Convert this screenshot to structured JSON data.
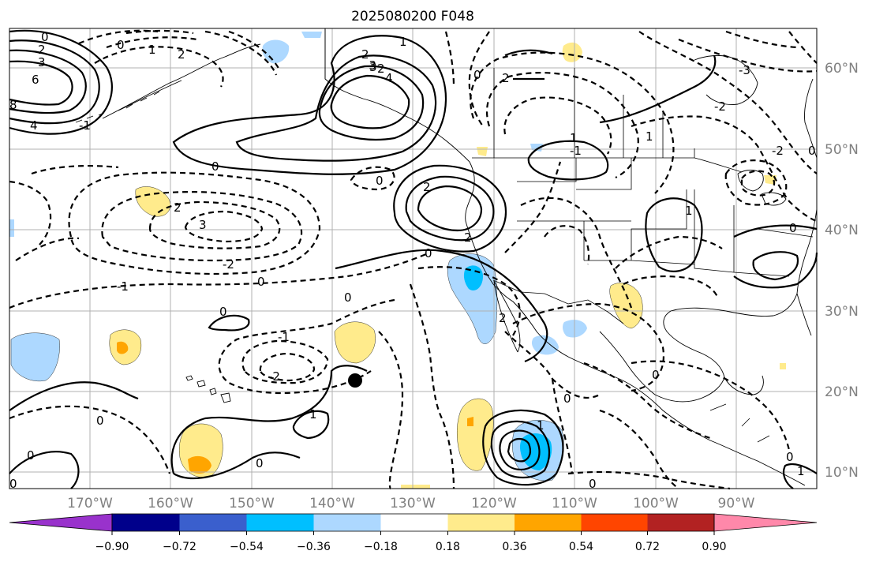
{
  "title": "2025080200 F048",
  "lat_labels": [
    "60°N",
    "50°N",
    "40°N",
    "30°N",
    "20°N",
    "10°N"
  ],
  "lon_labels": [
    "170°W",
    "160°W",
    "150°W",
    "140°W",
    "130°W",
    "120°W",
    "110°W",
    "100°W",
    "90°W"
  ],
  "colorbar": {
    "tick_labels": [
      "−0.90",
      "−0.72",
      "−0.54",
      "−0.36",
      "−0.18",
      "0.18",
      "0.36",
      "0.54",
      "0.72",
      "0.90"
    ],
    "colors": [
      "#9932cc",
      "#00008b",
      "#3a5fcd",
      "#00bfff",
      "#add8ff",
      "#ffffff",
      "#ffeb8c",
      "#ffa500",
      "#ff4500",
      "#b22222",
      "#ff88aa"
    ]
  },
  "contour_labels": [
    {
      "text": "0"
    },
    {
      "text": "2"
    },
    {
      "text": "3"
    },
    {
      "text": "6"
    },
    {
      "text": "8"
    },
    {
      "text": "4"
    },
    {
      "text": "0"
    },
    {
      "text": "1"
    },
    {
      "text": "2"
    },
    {
      "text": "-1"
    },
    {
      "text": "2"
    },
    {
      "text": "-3"
    },
    {
      "text": "1"
    },
    {
      "text": "2"
    },
    {
      "text": "3"
    },
    {
      "text": "4"
    },
    {
      "text": "0"
    },
    {
      "text": "2"
    },
    {
      "text": "0"
    },
    {
      "text": "-1"
    },
    {
      "text": "1"
    },
    {
      "text": "-3"
    },
    {
      "text": "-2"
    },
    {
      "text": "-2"
    },
    {
      "text": "0"
    },
    {
      "text": "0"
    },
    {
      "text": "2"
    },
    {
      "text": "2"
    },
    {
      "text": "2"
    },
    {
      "text": "3"
    },
    {
      "text": "-2"
    },
    {
      "text": "0"
    },
    {
      "text": "-1"
    },
    {
      "text": "0"
    },
    {
      "text": "0"
    },
    {
      "text": "-1"
    },
    {
      "text": "-2"
    },
    {
      "text": "0"
    },
    {
      "text": "1"
    },
    {
      "text": "0"
    },
    {
      "text": "0"
    },
    {
      "text": "2"
    },
    {
      "text": "0"
    },
    {
      "text": "0"
    },
    {
      "text": "0"
    },
    {
      "text": "1"
    },
    {
      "text": "1"
    },
    {
      "text": "0"
    },
    {
      "text": "0"
    },
    {
      "text": "0"
    },
    {
      "text": "0"
    },
    {
      "text": "1"
    },
    {
      "text": "1"
    }
  ]
}
